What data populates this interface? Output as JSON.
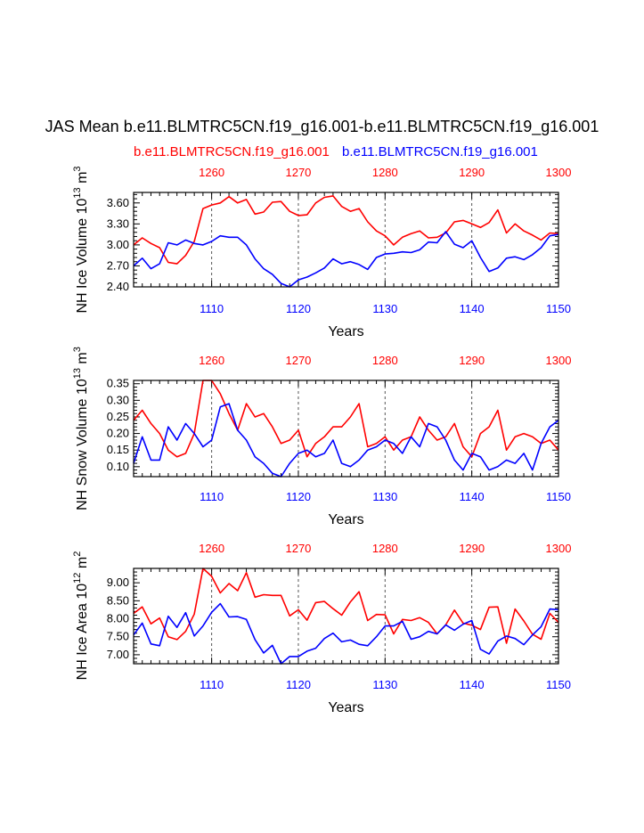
{
  "page": {
    "title": "JAS Mean b.e11.BLMTRC5CN.f19_g16.001-b.e11.BLMTRC5CN.f19_g16.001",
    "case_red": "b.e11.BLMTRC5CN.f19_g16.001",
    "case_blue": "b.e11.BLMTRC5CN.f19_g16.001"
  },
  "colors": {
    "case1": "#ff0000",
    "case2": "#0000ff"
  },
  "chart_data": [
    {
      "type": "line",
      "title": "",
      "ylabel": "NH Ice Volume 10^13 m^3",
      "ylabel_text": "NH Ice Volume 10",
      "ylabel_exp": "13",
      "ylabel_unit": "m",
      "ylabel_unit_exp": "3",
      "xlabel": "Years",
      "ylim": [
        2.4,
        3.75
      ],
      "yticks": [
        2.4,
        2.7,
        3.0,
        3.3,
        3.6
      ],
      "ytick_labels": [
        "2.40",
        "2.70",
        "3.00",
        "3.30",
        "3.60"
      ],
      "xlim": [
        1101,
        1150
      ],
      "xticks_bottom": [
        "1110",
        "1120",
        "1130",
        "1140",
        "1150"
      ],
      "xticks_top": [
        "1260",
        "1270",
        "1280",
        "1290",
        "1300"
      ],
      "gridlines_x": [
        1110,
        1120,
        1130,
        1140
      ],
      "x": [
        1101,
        1102,
        1103,
        1104,
        1105,
        1106,
        1107,
        1108,
        1109,
        1110,
        1111,
        1112,
        1113,
        1114,
        1115,
        1116,
        1117,
        1118,
        1119,
        1120,
        1121,
        1122,
        1123,
        1124,
        1125,
        1126,
        1127,
        1128,
        1129,
        1130,
        1131,
        1132,
        1133,
        1134,
        1135,
        1136,
        1137,
        1138,
        1139,
        1140,
        1141,
        1142,
        1143,
        1144,
        1145,
        1146,
        1147,
        1148,
        1149,
        1150
      ],
      "series": [
        {
          "color": "#ff0000",
          "values": [
            3.0,
            3.1,
            3.02,
            2.96,
            2.75,
            2.73,
            2.85,
            3.05,
            3.52,
            3.57,
            3.6,
            3.69,
            3.6,
            3.65,
            3.44,
            3.47,
            3.61,
            3.62,
            3.48,
            3.42,
            3.43,
            3.6,
            3.68,
            3.7,
            3.55,
            3.48,
            3.52,
            3.33,
            3.2,
            3.13,
            3.0,
            3.11,
            3.16,
            3.2,
            3.1,
            3.11,
            3.17,
            3.33,
            3.35,
            3.3,
            3.25,
            3.32,
            3.5,
            3.17,
            3.3,
            3.2,
            3.14,
            3.07,
            3.17,
            3.16
          ]
        },
        {
          "color": "#0000ff",
          "values": [
            2.7,
            2.81,
            2.66,
            2.73,
            3.03,
            3.0,
            3.07,
            3.02,
            3.0,
            3.05,
            3.13,
            3.11,
            3.11,
            3.0,
            2.8,
            2.66,
            2.58,
            2.45,
            2.4,
            2.5,
            2.54,
            2.6,
            2.67,
            2.8,
            2.73,
            2.76,
            2.72,
            2.65,
            2.82,
            2.87,
            2.88,
            2.9,
            2.89,
            2.93,
            3.04,
            3.03,
            3.19,
            3.01,
            2.96,
            3.06,
            2.82,
            2.62,
            2.67,
            2.81,
            2.83,
            2.79,
            2.86,
            2.96,
            3.13,
            3.15
          ]
        }
      ]
    },
    {
      "type": "line",
      "title": "",
      "ylabel": "NH Snow Volume 10^13 m^3",
      "ylabel_text": "NH Snow Volume 10",
      "ylabel_exp": "13",
      "ylabel_unit": "m",
      "ylabel_unit_exp": "3",
      "xlabel": "Years",
      "ylim": [
        0.07,
        0.36
      ],
      "yticks": [
        0.1,
        0.15,
        0.2,
        0.25,
        0.3,
        0.35
      ],
      "ytick_labels": [
        "0.10",
        "0.15",
        "0.20",
        "0.25",
        "0.30",
        "0.35"
      ],
      "xlim": [
        1101,
        1150
      ],
      "xticks_bottom": [
        "1110",
        "1120",
        "1130",
        "1140",
        "1150"
      ],
      "xticks_top": [
        "1260",
        "1270",
        "1280",
        "1290",
        "1300"
      ],
      "gridlines_x": [
        1110,
        1120,
        1130,
        1140
      ],
      "x": [
        1101,
        1102,
        1103,
        1104,
        1105,
        1106,
        1107,
        1108,
        1109,
        1110,
        1111,
        1112,
        1113,
        1114,
        1115,
        1116,
        1117,
        1118,
        1119,
        1120,
        1121,
        1122,
        1123,
        1124,
        1125,
        1126,
        1127,
        1128,
        1129,
        1130,
        1131,
        1132,
        1133,
        1134,
        1135,
        1136,
        1137,
        1138,
        1139,
        1140,
        1141,
        1142,
        1143,
        1144,
        1145,
        1146,
        1147,
        1148,
        1149,
        1150
      ],
      "series": [
        {
          "color": "#ff0000",
          "values": [
            0.24,
            0.27,
            0.23,
            0.2,
            0.15,
            0.13,
            0.14,
            0.2,
            0.36,
            0.36,
            0.32,
            0.26,
            0.21,
            0.29,
            0.25,
            0.26,
            0.22,
            0.17,
            0.18,
            0.21,
            0.13,
            0.17,
            0.19,
            0.22,
            0.22,
            0.25,
            0.29,
            0.16,
            0.17,
            0.19,
            0.15,
            0.18,
            0.19,
            0.25,
            0.21,
            0.18,
            0.19,
            0.23,
            0.16,
            0.13,
            0.2,
            0.22,
            0.27,
            0.15,
            0.19,
            0.2,
            0.19,
            0.17,
            0.18,
            0.15
          ]
        },
        {
          "color": "#0000ff",
          "values": [
            0.11,
            0.19,
            0.12,
            0.12,
            0.22,
            0.18,
            0.23,
            0.2,
            0.16,
            0.18,
            0.28,
            0.29,
            0.21,
            0.18,
            0.13,
            0.11,
            0.08,
            0.07,
            0.11,
            0.14,
            0.15,
            0.13,
            0.14,
            0.18,
            0.11,
            0.1,
            0.12,
            0.15,
            0.16,
            0.18,
            0.17,
            0.14,
            0.19,
            0.16,
            0.23,
            0.22,
            0.18,
            0.12,
            0.09,
            0.14,
            0.13,
            0.09,
            0.1,
            0.12,
            0.11,
            0.14,
            0.09,
            0.17,
            0.22,
            0.24
          ]
        }
      ]
    },
    {
      "type": "line",
      "title": "",
      "ylabel": "NH Ice Area 10^12 m^2",
      "ylabel_text": "NH Ice Area 10",
      "ylabel_exp": "12",
      "ylabel_unit": "m",
      "ylabel_unit_exp": "2",
      "xlabel": "Years",
      "ylim": [
        6.75,
        9.4
      ],
      "yticks": [
        7.0,
        7.5,
        8.0,
        8.5,
        9.0
      ],
      "ytick_labels": [
        "7.00",
        "7.50",
        "8.00",
        "8.50",
        "9.00"
      ],
      "xlim": [
        1101,
        1150
      ],
      "xticks_bottom": [
        "1110",
        "1120",
        "1130",
        "1140",
        "1150"
      ],
      "xticks_top": [
        "1260",
        "1270",
        "1280",
        "1290",
        "1300"
      ],
      "gridlines_x": [
        1110,
        1120,
        1130,
        1140
      ],
      "x": [
        1101,
        1102,
        1103,
        1104,
        1105,
        1106,
        1107,
        1108,
        1109,
        1110,
        1111,
        1112,
        1113,
        1114,
        1115,
        1116,
        1117,
        1118,
        1119,
        1120,
        1121,
        1122,
        1123,
        1124,
        1125,
        1126,
        1127,
        1128,
        1129,
        1130,
        1131,
        1132,
        1133,
        1134,
        1135,
        1136,
        1137,
        1138,
        1139,
        1140,
        1141,
        1142,
        1143,
        1144,
        1145,
        1146,
        1147,
        1148,
        1149,
        1150
      ],
      "series": [
        {
          "color": "#ff0000",
          "values": [
            8.15,
            8.33,
            7.86,
            8.02,
            7.5,
            7.42,
            7.65,
            8.13,
            9.4,
            9.18,
            8.72,
            8.98,
            8.78,
            9.28,
            8.6,
            8.67,
            8.65,
            8.65,
            8.08,
            8.25,
            7.96,
            8.45,
            8.48,
            8.28,
            8.1,
            8.47,
            8.75,
            7.95,
            8.12,
            8.11,
            7.58,
            7.98,
            7.95,
            8.03,
            7.9,
            7.58,
            7.83,
            8.24,
            7.88,
            7.82,
            7.7,
            8.32,
            8.33,
            7.32,
            8.27,
            7.94,
            7.57,
            7.43,
            8.15,
            7.9
          ]
        },
        {
          "color": "#0000ff",
          "values": [
            7.55,
            7.88,
            7.3,
            7.25,
            8.07,
            7.76,
            8.17,
            7.52,
            7.8,
            8.18,
            8.42,
            8.05,
            8.06,
            7.98,
            7.42,
            7.05,
            7.26,
            6.75,
            6.95,
            6.95,
            7.1,
            7.18,
            7.45,
            7.6,
            7.36,
            7.41,
            7.29,
            7.25,
            7.5,
            7.8,
            7.8,
            7.93,
            7.43,
            7.5,
            7.65,
            7.58,
            7.83,
            7.68,
            7.85,
            7.95,
            7.15,
            7.02,
            7.38,
            7.52,
            7.45,
            7.28,
            7.55,
            7.78,
            8.27,
            8.25
          ]
        }
      ]
    }
  ]
}
